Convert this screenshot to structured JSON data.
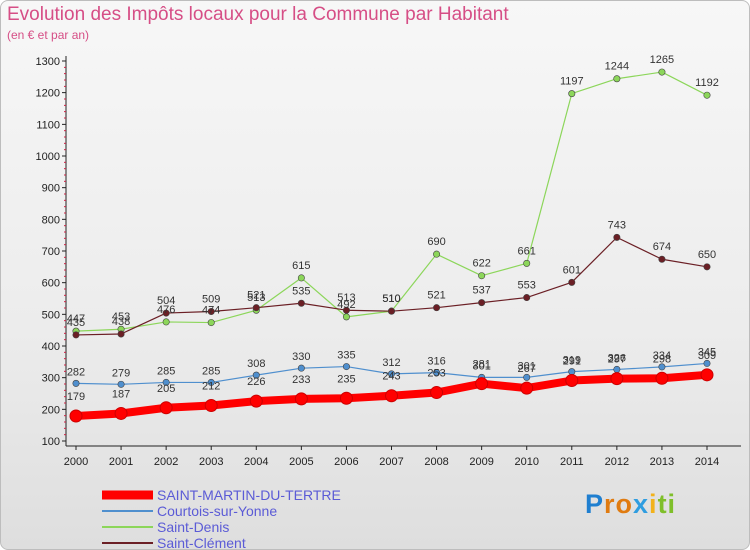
{
  "title": "Evolution des Impôts locaux pour la Commune par Habitant",
  "subtitle": "(en € et par an)",
  "logo_text": "Proxiti",
  "chart_data": {
    "type": "line",
    "title": "Evolution des Impôts locaux pour la Commune par Habitant",
    "subtitle": "(en € et par an)",
    "x": [
      "2000",
      "2001",
      "2002",
      "2003",
      "2004",
      "2005",
      "2006",
      "2007",
      "2008",
      "2009",
      "2010",
      "2011",
      "2012",
      "2013",
      "2014"
    ],
    "yticks": [
      100,
      200,
      300,
      400,
      500,
      600,
      700,
      800,
      900,
      1000,
      1100,
      1200,
      1300
    ],
    "ylim": [
      100,
      1300
    ],
    "grid": false,
    "legend_position": "bottom-left",
    "series": [
      {
        "name": "SAINT-MARTIN-DU-TERTRE",
        "color": "#ff0000",
        "values": [
          179,
          187,
          205,
          212,
          226,
          233,
          235,
          243,
          253,
          281,
          267,
          291,
          297,
          298,
          309
        ]
      },
      {
        "name": "Courtois-sur-Yonne",
        "color": "#4f8fce",
        "values": [
          282,
          279,
          285,
          285,
          308,
          330,
          335,
          312,
          316,
          301,
          301,
          319,
          326,
          334,
          345
        ]
      },
      {
        "name": "Saint-Denis",
        "color": "#8cd65a",
        "values": [
          447,
          453,
          476,
          474,
          513,
          615,
          492,
          510,
          690,
          622,
          661,
          1197,
          1244,
          1265,
          1192
        ]
      },
      {
        "name": "Saint-Clément",
        "color": "#6b1f25",
        "values": [
          435,
          438,
          504,
          509,
          521,
          535,
          513,
          510,
          521,
          537,
          553,
          601,
          743,
          674,
          650
        ]
      }
    ]
  }
}
